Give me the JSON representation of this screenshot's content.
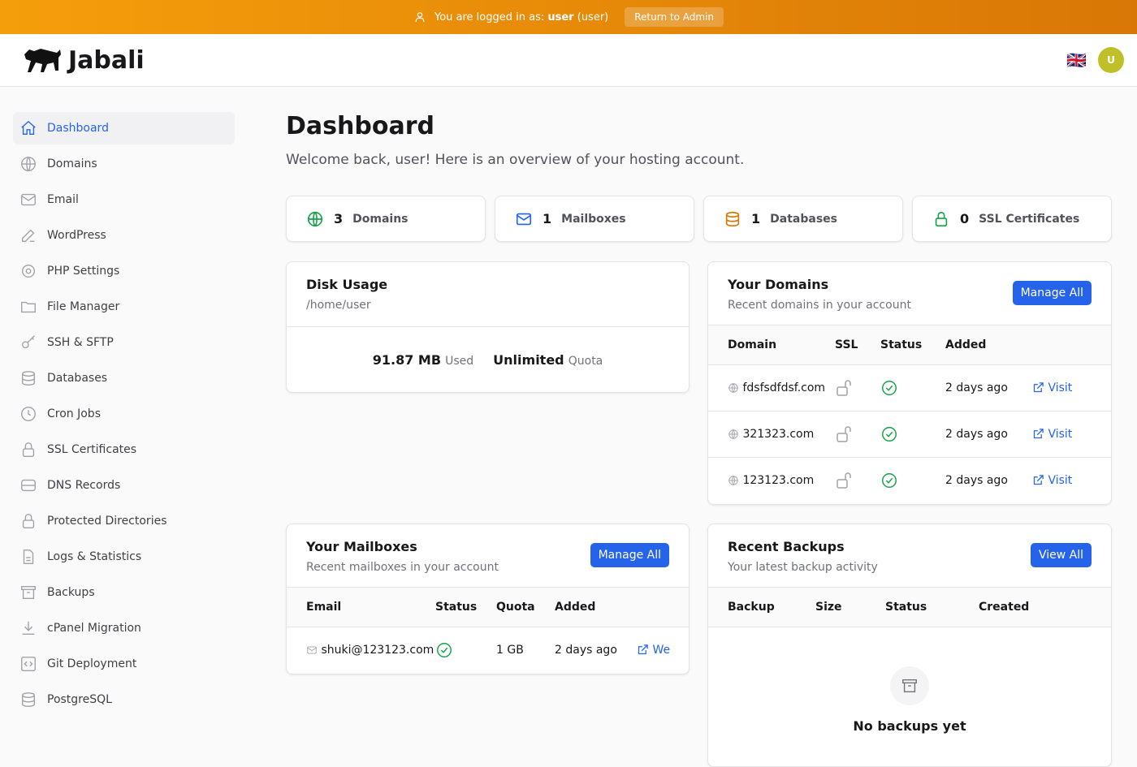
{
  "banner": {
    "prefix": "You are logged in as:",
    "user": "user",
    "role": "(user)",
    "return_label": "Return to Admin"
  },
  "header": {
    "brand": "Jabali",
    "avatar": "U",
    "flag": "🇬🇧"
  },
  "sidebar": {
    "items": [
      {
        "label": "Dashboard",
        "icon": "home-icon"
      },
      {
        "label": "Domains",
        "icon": "globe-icon"
      },
      {
        "label": "Email",
        "icon": "envelope-icon"
      },
      {
        "label": "WordPress",
        "icon": "pencil-icon"
      },
      {
        "label": "PHP Settings",
        "icon": "gear-icon"
      },
      {
        "label": "File Manager",
        "icon": "folder-icon"
      },
      {
        "label": "SSH & SFTP",
        "icon": "key-icon"
      },
      {
        "label": "Databases",
        "icon": "database-icon"
      },
      {
        "label": "Cron Jobs",
        "icon": "clock-icon"
      },
      {
        "label": "SSL Certificates",
        "icon": "lock-icon"
      },
      {
        "label": "DNS Records",
        "icon": "server-icon"
      },
      {
        "label": "Protected Directories",
        "icon": "lock-icon"
      },
      {
        "label": "Logs & Statistics",
        "icon": "document-icon"
      },
      {
        "label": "Backups",
        "icon": "archive-icon"
      },
      {
        "label": "cPanel Migration",
        "icon": "download-icon"
      },
      {
        "label": "Git Deployment",
        "icon": "code-icon"
      },
      {
        "label": "PostgreSQL",
        "icon": "database-icon"
      }
    ]
  },
  "main": {
    "title": "Dashboard",
    "subtitle": "Welcome back, user! Here is an overview of your hosting account.",
    "stats": [
      {
        "count": "3",
        "label": "Domains",
        "color": "#16a34a"
      },
      {
        "count": "1",
        "label": "Mailboxes",
        "color": "#2563eb"
      },
      {
        "count": "1",
        "label": "Databases",
        "color": "#d97706"
      },
      {
        "count": "0",
        "label": "SSL Certificates",
        "color": "#16a34a"
      }
    ],
    "disk": {
      "title": "Disk Usage",
      "path": "/home/user",
      "used": "91.87 MB",
      "used_label": "Used",
      "quota": "Unlimited",
      "quota_label": "Quota"
    },
    "domains": {
      "title": "Your Domains",
      "subtitle": "Recent domains in your account",
      "button": "Manage All",
      "headers": [
        "Domain",
        "SSL",
        "Status",
        "Added"
      ],
      "rows": [
        {
          "domain": "fdsfsdfdsf.com",
          "added": "2 days ago",
          "action": "Visit"
        },
        {
          "domain": "321323.com",
          "added": "2 days ago",
          "action": "Visit"
        },
        {
          "domain": "123123.com",
          "added": "2 days ago",
          "action": "Visit"
        }
      ]
    },
    "mailboxes": {
      "title": "Your Mailboxes",
      "subtitle": "Recent mailboxes in your account",
      "button": "Manage All",
      "headers": [
        "Email",
        "Status",
        "Quota",
        "Added"
      ],
      "rows": [
        {
          "email": "shuki@123123.com",
          "quota": "1 GB",
          "added": "2 days ago",
          "action": "We"
        }
      ]
    },
    "backups": {
      "title": "Recent Backups",
      "subtitle": "Your latest backup activity",
      "button": "View All",
      "headers": [
        "Backup",
        "Size",
        "Status",
        "Created"
      ],
      "empty": "No backups yet"
    }
  }
}
